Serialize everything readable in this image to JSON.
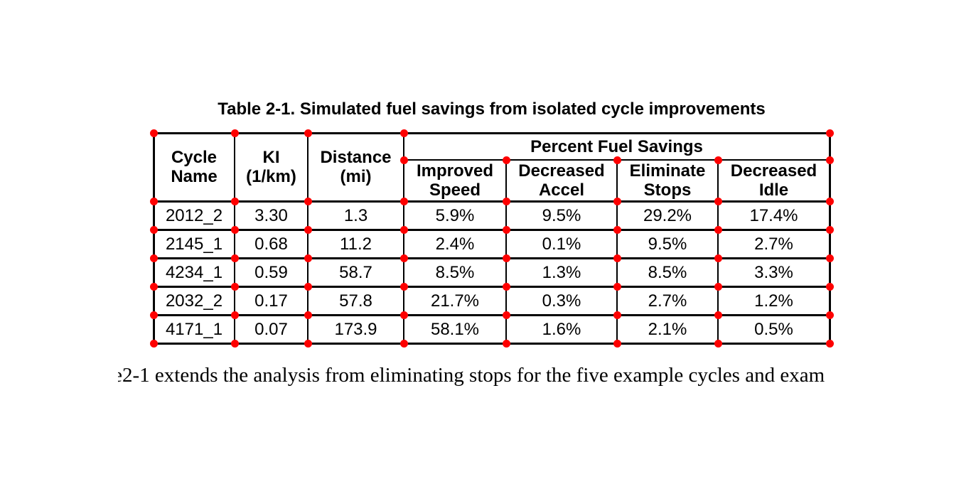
{
  "title": "Table 2-1. Simulated fuel savings from isolated cycle improvements",
  "table": {
    "group_header": "Percent Fuel Savings",
    "headers": {
      "cycle_name": "Cycle\nName",
      "ki": "KI\n(1/km)",
      "distance": "Distance\n(mi)",
      "improved_speed": "Improved\nSpeed",
      "decreased_accel": "Decreased\nAccel",
      "eliminate_stops": "Eliminate\nStops",
      "decreased_idle": "Decreased\nIdle"
    },
    "rows": [
      [
        "2012_2",
        "3.30",
        "1.3",
        "5.9%",
        "9.5%",
        "29.2%",
        "17.4%"
      ],
      [
        "2145_1",
        "0.68",
        "11.2",
        "2.4%",
        "0.1%",
        "9.5%",
        "2.7%"
      ],
      [
        "4234_1",
        "0.59",
        "58.7",
        "8.5%",
        "1.3%",
        "8.5%",
        "3.3%"
      ],
      [
        "2032_2",
        "0.17",
        "57.8",
        "21.7%",
        "0.3%",
        "2.7%",
        "1.2%"
      ],
      [
        "4171_1",
        "0.07",
        "173.9",
        "58.1%",
        "1.6%",
        "2.1%",
        "0.5%"
      ]
    ]
  },
  "caption": {
    "clipped_prefix": "e",
    "visible_text": "2-1 extends the analysis from eliminating stops for the five example cycles and exam"
  },
  "markers": {
    "dot_color": "#fe0000"
  }
}
